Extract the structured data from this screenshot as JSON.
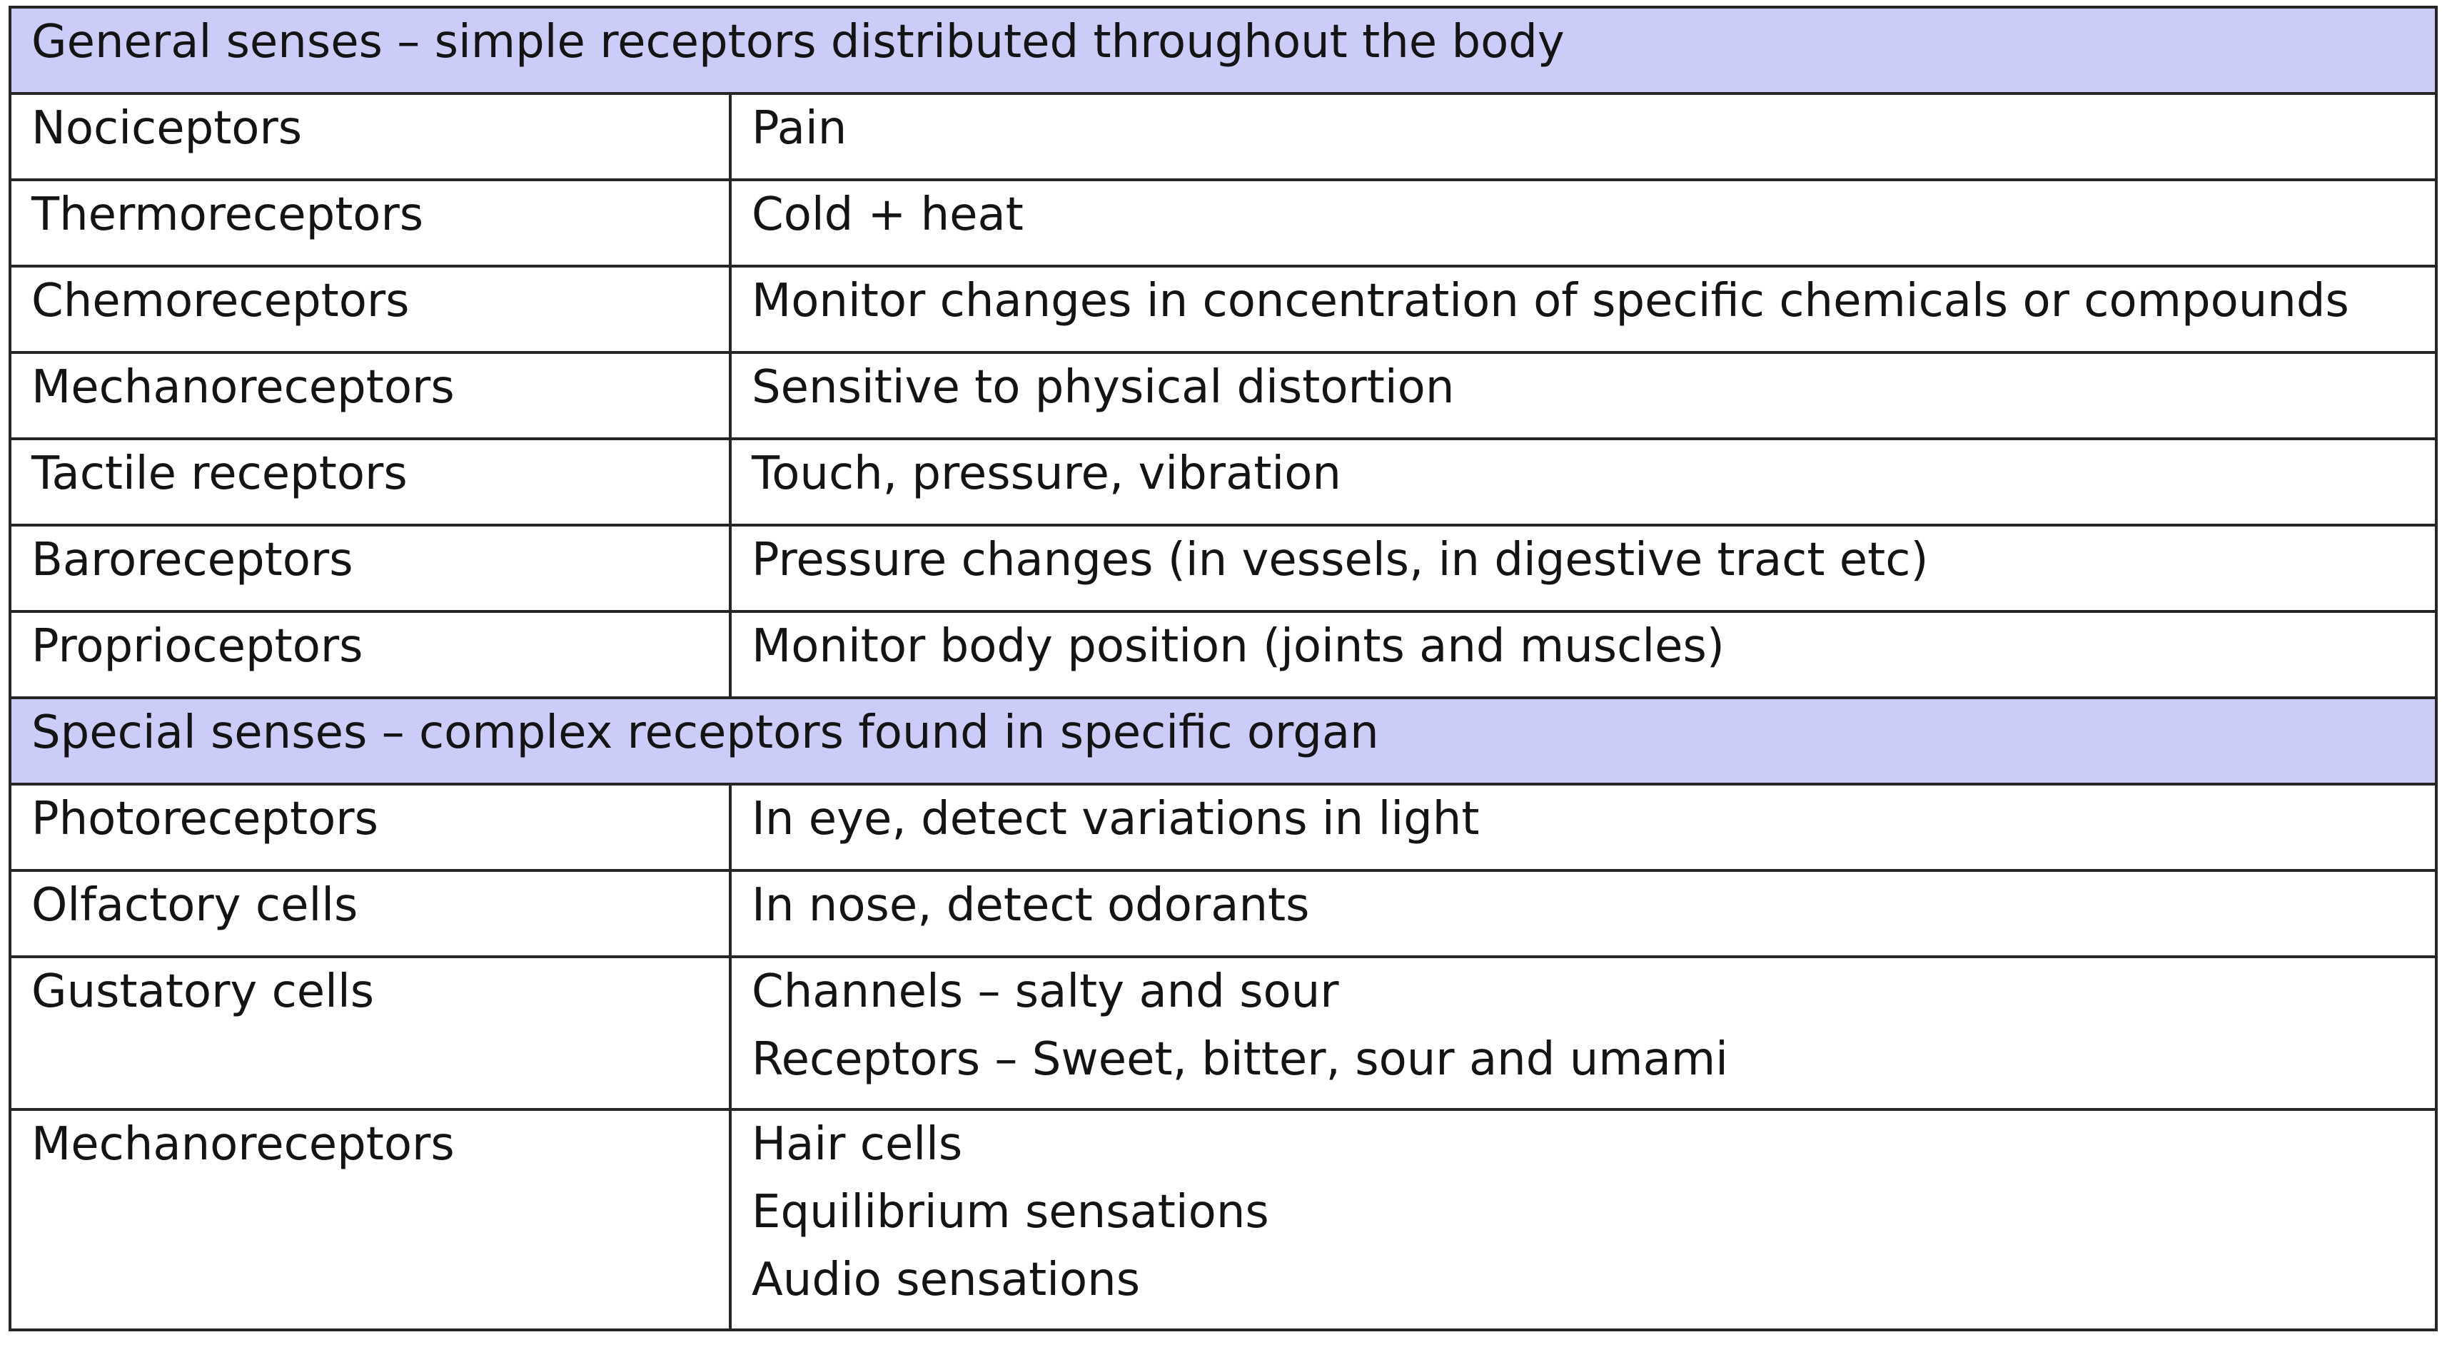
{
  "table": {
    "general_header": "General senses – simple receptors distributed throughout the body",
    "general_rows": [
      {
        "receptor": "Nociceptors",
        "description": "Pain"
      },
      {
        "receptor": "Thermoreceptors",
        "description": "Cold + heat"
      },
      {
        "receptor": "Chemoreceptors",
        "description": "Monitor changes in concentration of specific chemicals or compounds"
      },
      {
        "receptor": "Mechanoreceptors",
        "description": "Sensitive to physical distortion"
      },
      {
        "receptor": "Tactile receptors",
        "description": "Touch, pressure, vibration"
      },
      {
        "receptor": "Baroreceptors",
        "description": "Pressure changes (in vessels, in digestive tract etc)"
      },
      {
        "receptor": "Proprioceptors",
        "description": "Monitor body position (joints and muscles)"
      }
    ],
    "special_header": "Special senses – complex receptors found in specific organ",
    "special_rows": [
      {
        "receptor": "Photoreceptors",
        "lines": [
          "In eye, detect variations in light"
        ]
      },
      {
        "receptor": "Olfactory cells",
        "lines": [
          "In nose, detect odorants"
        ]
      },
      {
        "receptor": "Gustatory cells",
        "lines": [
          "Channels – salty and sour",
          "Receptors – Sweet, bitter, sour and umami"
        ]
      },
      {
        "receptor": "Mechanoreceptors",
        "lines": [
          "Hair cells",
          "Equilibrium sensations",
          "Audio sensations"
        ]
      }
    ]
  }
}
